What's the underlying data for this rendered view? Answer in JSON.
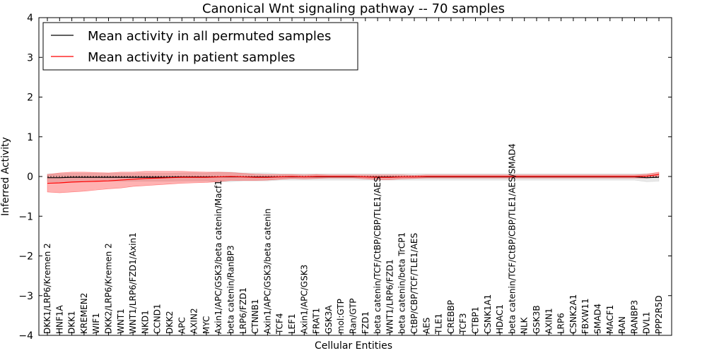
{
  "chart_data": {
    "type": "line",
    "title": "Canonical Wnt signaling pathway -- 70 samples",
    "xlabel": "Cellular Entities",
    "ylabel": "Inferred Activity",
    "ylim": [
      -4,
      4
    ],
    "yticks": [
      4,
      3,
      2,
      1,
      0,
      -1,
      -2,
      -3,
      -4
    ],
    "ytick_labels": [
      "4",
      "3",
      "2",
      "1",
      "0",
      "−1",
      "−2",
      "−3",
      "−4"
    ],
    "legend": {
      "location": "top-left"
    },
    "categories": [
      "DKK1/LRP6/Kremen 2",
      "HNF1A",
      "DKK1",
      "KREMEN2",
      "WIF1",
      "DKK2/LRP6/Kremen 2",
      "WNT1",
      "WNT1/LRP6/FZD1/Axin1",
      "NKD1",
      "CCND1",
      "DKK2",
      "APC",
      "AXIN2",
      "MYC",
      "Axin1/APC/GSK3/beta catenin/Macf1",
      "beta catenin/RanBP3",
      "LRP6/FZD1",
      "CTNNB1",
      "Axin1/APC/GSK3/beta catenin",
      "TCF4",
      "LEF1",
      "Axin1/APC/GSK3",
      "FRAT1",
      "GSK3A",
      "mol:GTP",
      "Ran/GTP",
      "FZD1",
      "beta catenin/TCF/CtBP/CBP/TLE1/AES",
      "WNT1/LRP6/FZD1",
      "beta catenin/beta TrCP1",
      "CtBP/CBP/TCF/TLE1/AES",
      "AES",
      "TLE1",
      "CREBBP",
      "TCF3",
      "CTBP1",
      "CSNK1A1",
      "HDAC1",
      "beta catenin/TCF/CtBP/CBP/TLE1/AES/SMAD4",
      "NLK",
      "GSK3B",
      "AXIN1",
      "LRP6",
      "CSNK2A1",
      "FBXW11",
      "SMAD4",
      "MACF1",
      "RAN",
      "RANBP3",
      "DVL1",
      "PPP2R5D"
    ],
    "series": [
      {
        "name": "Mean activity in all permuted samples",
        "color": "#000000",
        "band_color": "#999999",
        "values": [
          -0.03,
          -0.03,
          -0.02,
          -0.02,
          -0.02,
          -0.02,
          -0.02,
          -0.02,
          -0.02,
          -0.02,
          -0.02,
          -0.01,
          -0.01,
          -0.01,
          -0.01,
          -0.01,
          -0.01,
          -0.01,
          -0.01,
          -0.01,
          -0.01,
          -0.01,
          -0.01,
          -0.01,
          -0.01,
          -0.01,
          -0.01,
          -0.01,
          -0.01,
          -0.01,
          -0.01,
          -0.01,
          -0.01,
          -0.01,
          -0.01,
          -0.01,
          -0.01,
          -0.01,
          -0.01,
          -0.01,
          -0.01,
          -0.01,
          -0.01,
          -0.01,
          -0.01,
          -0.01,
          -0.01,
          -0.01,
          -0.01,
          -0.03,
          -0.02
        ],
        "spread": [
          0.1,
          0.1,
          0.1,
          0.1,
          0.1,
          0.1,
          0.1,
          0.1,
          0.1,
          0.1,
          0.1,
          0.1,
          0.1,
          0.1,
          0.12,
          0.12,
          0.1,
          0.1,
          0.1,
          0.08,
          0.08,
          0.08,
          0.08,
          0.08,
          0.08,
          0.08,
          0.08,
          0.08,
          0.08,
          0.08,
          0.08,
          0.08,
          0.08,
          0.08,
          0.08,
          0.08,
          0.08,
          0.08,
          0.08,
          0.08,
          0.08,
          0.08,
          0.08,
          0.08,
          0.08,
          0.08,
          0.08,
          0.08,
          0.08,
          0.1,
          0.1
        ]
      },
      {
        "name": "Mean activity in patient samples",
        "color": "#ff0000",
        "band_color": "#ff0000",
        "values": [
          -0.17,
          -0.16,
          -0.14,
          -0.13,
          -0.12,
          -0.11,
          -0.09,
          -0.07,
          -0.05,
          -0.04,
          -0.03,
          -0.02,
          -0.02,
          -0.02,
          -0.01,
          0.0,
          -0.01,
          -0.02,
          -0.02,
          -0.01,
          0.0,
          -0.01,
          0.0,
          0.0,
          0.0,
          0.0,
          -0.01,
          -0.02,
          -0.02,
          -0.01,
          -0.01,
          0.0,
          0.0,
          0.0,
          0.0,
          0.0,
          0.0,
          0.0,
          0.0,
          0.0,
          0.0,
          0.0,
          0.0,
          0.0,
          0.0,
          0.0,
          0.0,
          0.0,
          0.0,
          0.01,
          0.05
        ],
        "spread": [
          0.22,
          0.25,
          0.25,
          0.24,
          0.22,
          0.2,
          0.2,
          0.18,
          0.18,
          0.17,
          0.16,
          0.15,
          0.14,
          0.13,
          0.12,
          0.1,
          0.09,
          0.08,
          0.07,
          0.06,
          0.05,
          0.05,
          0.05,
          0.04,
          0.04,
          0.04,
          0.05,
          0.06,
          0.06,
          0.05,
          0.04,
          0.04,
          0.04,
          0.04,
          0.04,
          0.04,
          0.04,
          0.04,
          0.04,
          0.04,
          0.04,
          0.04,
          0.04,
          0.04,
          0.04,
          0.04,
          0.04,
          0.04,
          0.04,
          0.05,
          0.06
        ]
      }
    ]
  }
}
